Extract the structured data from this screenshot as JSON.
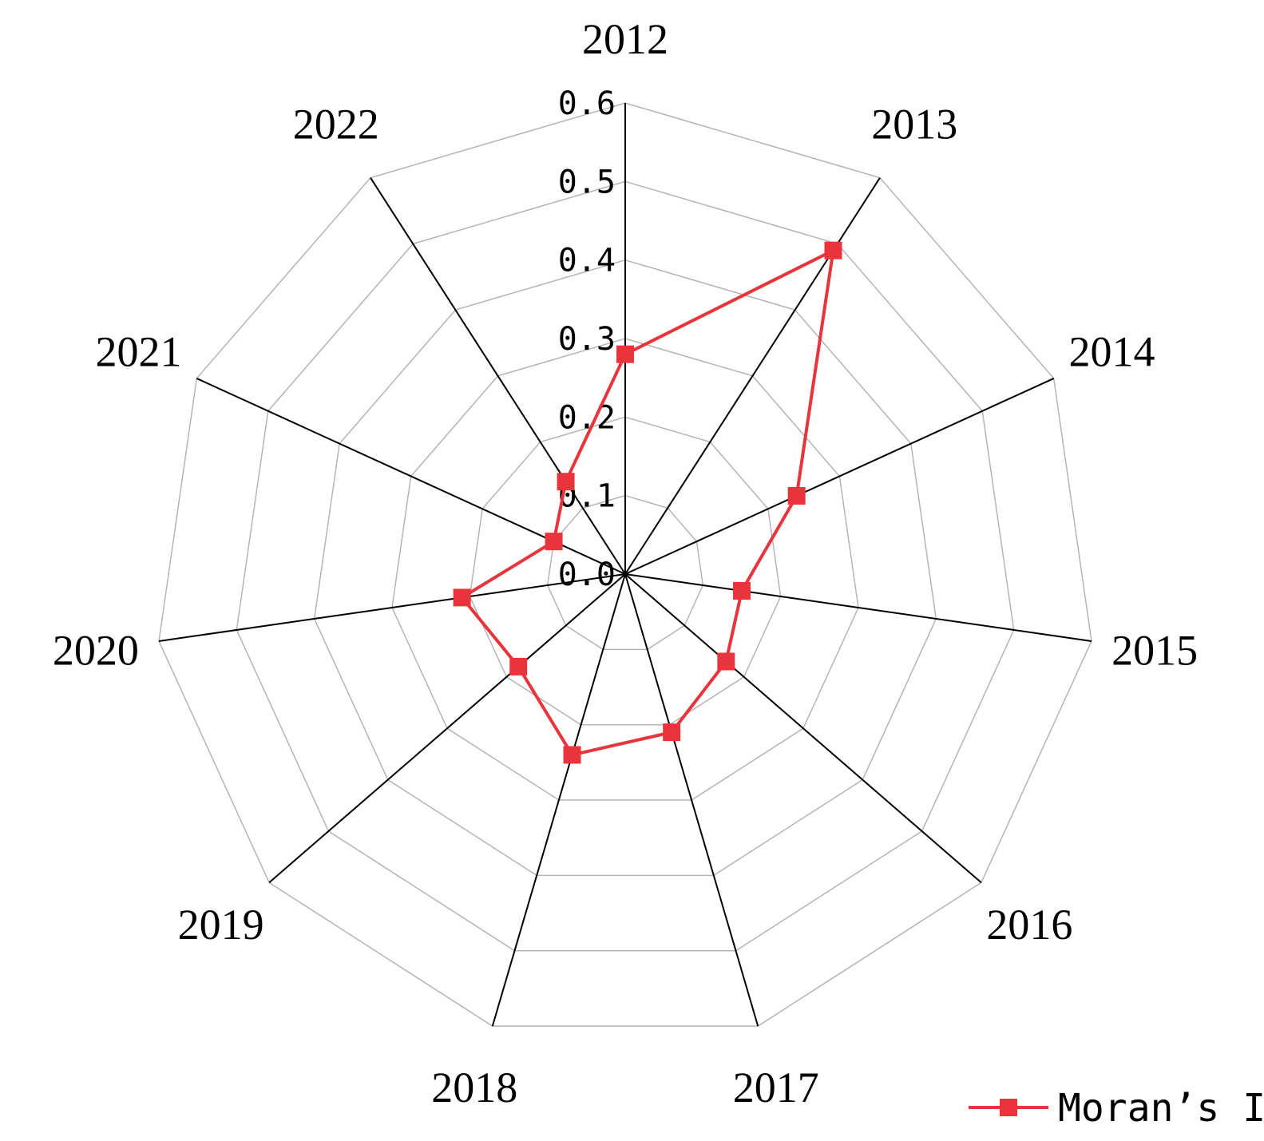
{
  "chart_data": {
    "type": "radar",
    "categories": [
      "2012",
      "2013",
      "2014",
      "2015",
      "2016",
      "2017",
      "2018",
      "2019",
      "2020",
      "2021",
      "2022"
    ],
    "series": [
      {
        "name": "Moran’s I",
        "values": [
          0.28,
          0.49,
          0.24,
          0.15,
          0.17,
          0.21,
          0.24,
          0.18,
          0.21,
          0.1,
          0.14
        ]
      }
    ],
    "radial_ticks": [
      "0.0",
      "0.1",
      "0.2",
      "0.3",
      "0.4",
      "0.5",
      "0.6"
    ],
    "rlim": [
      0,
      0.6
    ],
    "grid": true,
    "legend_position": "bottom-right",
    "colors": {
      "series": "#e8343a",
      "axis": "#000000",
      "grid": "#b4b4b4"
    }
  }
}
